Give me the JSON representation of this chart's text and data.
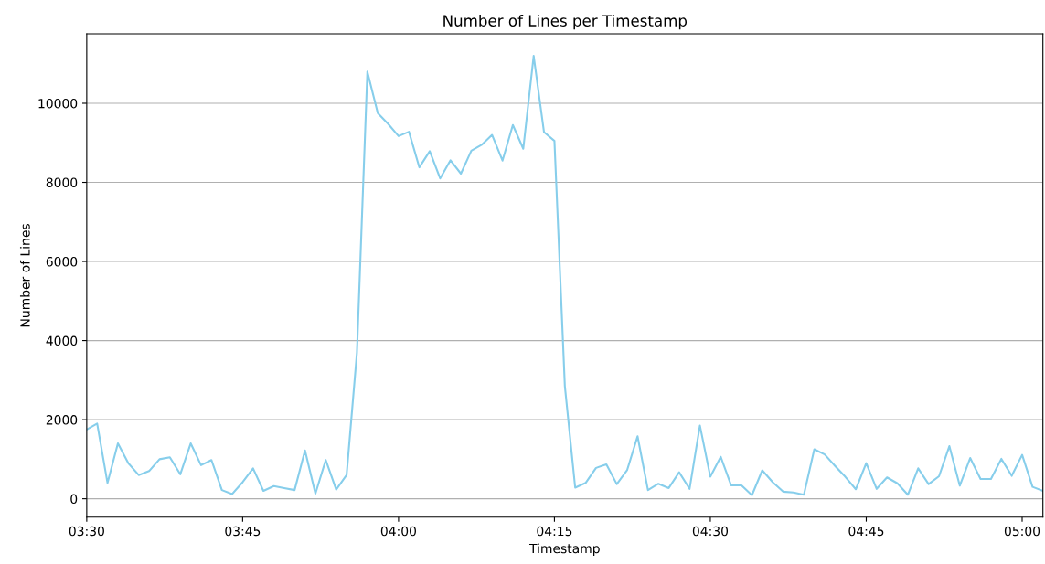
{
  "chart_data": {
    "type": "line",
    "title": "Number of Lines per Timestamp",
    "xlabel": "Timestamp",
    "ylabel": "Number of Lines",
    "x": [
      3.5,
      3.5167,
      3.5333,
      3.55,
      3.5667,
      3.5833,
      3.6,
      3.6167,
      3.6333,
      3.65,
      3.6667,
      3.6833,
      3.7,
      3.7167,
      3.7333,
      3.75,
      3.7667,
      3.7833,
      3.8,
      3.8167,
      3.8333,
      3.85,
      3.8667,
      3.8833,
      3.9,
      3.9167,
      3.9333,
      3.95,
      3.9667,
      3.9833,
      4.0,
      4.0167,
      4.0333,
      4.05,
      4.0667,
      4.0833,
      4.1,
      4.1167,
      4.1333,
      4.15,
      4.1667,
      4.1833,
      4.2,
      4.2167,
      4.2333,
      4.25,
      4.2667,
      4.2833,
      4.3,
      4.3167,
      4.3333,
      4.35,
      4.3667,
      4.3833,
      4.4,
      4.4167,
      4.4333,
      4.45,
      4.4667,
      4.4833,
      4.5,
      4.5167,
      4.5333,
      4.55,
      4.5667,
      4.5833,
      4.6,
      4.6167,
      4.6333,
      4.65,
      4.6667,
      4.6833,
      4.7,
      4.7167,
      4.7333,
      4.75,
      4.7667,
      4.7833,
      4.8,
      4.8167,
      4.8333,
      4.85,
      4.8667,
      4.8833,
      4.9,
      4.9167,
      4.9333,
      4.95,
      4.9667,
      4.9833,
      5.0,
      5.0167,
      5.0333
    ],
    "series": [
      {
        "color": "#87ceeb",
        "values": [
          1750,
          1900,
          400,
          1400,
          900,
          600,
          700,
          1000,
          1050,
          620,
          1400,
          850,
          980,
          220,
          120,
          420,
          770,
          200,
          320,
          270,
          220,
          1220,
          130,
          980,
          230,
          600,
          3700,
          10800,
          9750,
          9480,
          9170,
          9280,
          8380,
          8790,
          8100,
          8560,
          8220,
          8800,
          8950,
          9200,
          8550,
          9450,
          8850,
          11200,
          9270,
          9050,
          2850,
          280,
          400,
          780,
          870,
          370,
          730,
          1580,
          220,
          380,
          270,
          670,
          250,
          1850,
          560,
          1060,
          340,
          340,
          90,
          720,
          420,
          180,
          160,
          100,
          1250,
          1120,
          830,
          550,
          240,
          900,
          250,
          540,
          390,
          100,
          770,
          370,
          570,
          1330,
          330,
          1030,
          500,
          500,
          1010,
          580,
          1110,
          300,
          200
        ]
      }
    ],
    "xlim": [
      3.5,
      5.0333
    ],
    "xticks": [
      {
        "value": 3.5,
        "label": "03:30"
      },
      {
        "value": 3.75,
        "label": "03:45"
      },
      {
        "value": 4.0,
        "label": "04:00"
      },
      {
        "value": 4.25,
        "label": "04:15"
      },
      {
        "value": 4.5,
        "label": "04:30"
      },
      {
        "value": 4.75,
        "label": "04:45"
      },
      {
        "value": 5.0,
        "label": "05:00"
      }
    ],
    "ylim": [
      -466,
      11756
    ],
    "yticks": [
      0,
      2000,
      4000,
      6000,
      8000,
      10000
    ],
    "grid": "y",
    "line_style": "solid",
    "marker": "none"
  }
}
